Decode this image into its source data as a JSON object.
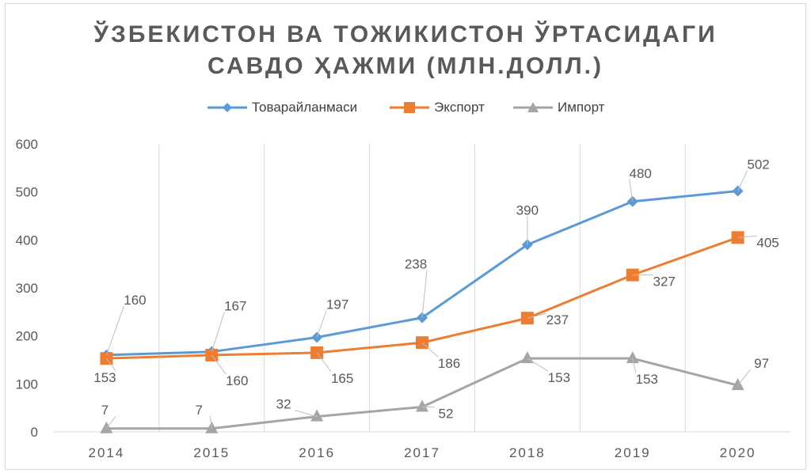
{
  "chart_data": {
    "type": "line",
    "title_lines": [
      "ЎЗБЕКИСТОН ВА ТОЖИКИСТОН ЎРТАСИДАГИ",
      "САВДО ҲАЖМИ (МЛН.ДОЛЛ.)"
    ],
    "categories": [
      "2014",
      "2015",
      "2016",
      "2017",
      "2018",
      "2019",
      "2020"
    ],
    "ylim": [
      0,
      600
    ],
    "yticks": [
      "0",
      "100",
      "200",
      "300",
      "400",
      "500",
      "600"
    ],
    "grid": "vertical",
    "legend_position": "top",
    "series": [
      {
        "name": "Товарайланмаси",
        "values": [
          160,
          167,
          197,
          238,
          390,
          480,
          502
        ],
        "color": "#5b9bd5",
        "marker": "diamond"
      },
      {
        "name": "Экспорт",
        "values": [
          153,
          160,
          165,
          186,
          237,
          327,
          405
        ],
        "color": "#ed7d31",
        "marker": "square"
      },
      {
        "name": "Импорт",
        "values": [
          7,
          7,
          32,
          52,
          153,
          153,
          97
        ],
        "color": "#a5a5a5",
        "marker": "triangle"
      }
    ]
  }
}
